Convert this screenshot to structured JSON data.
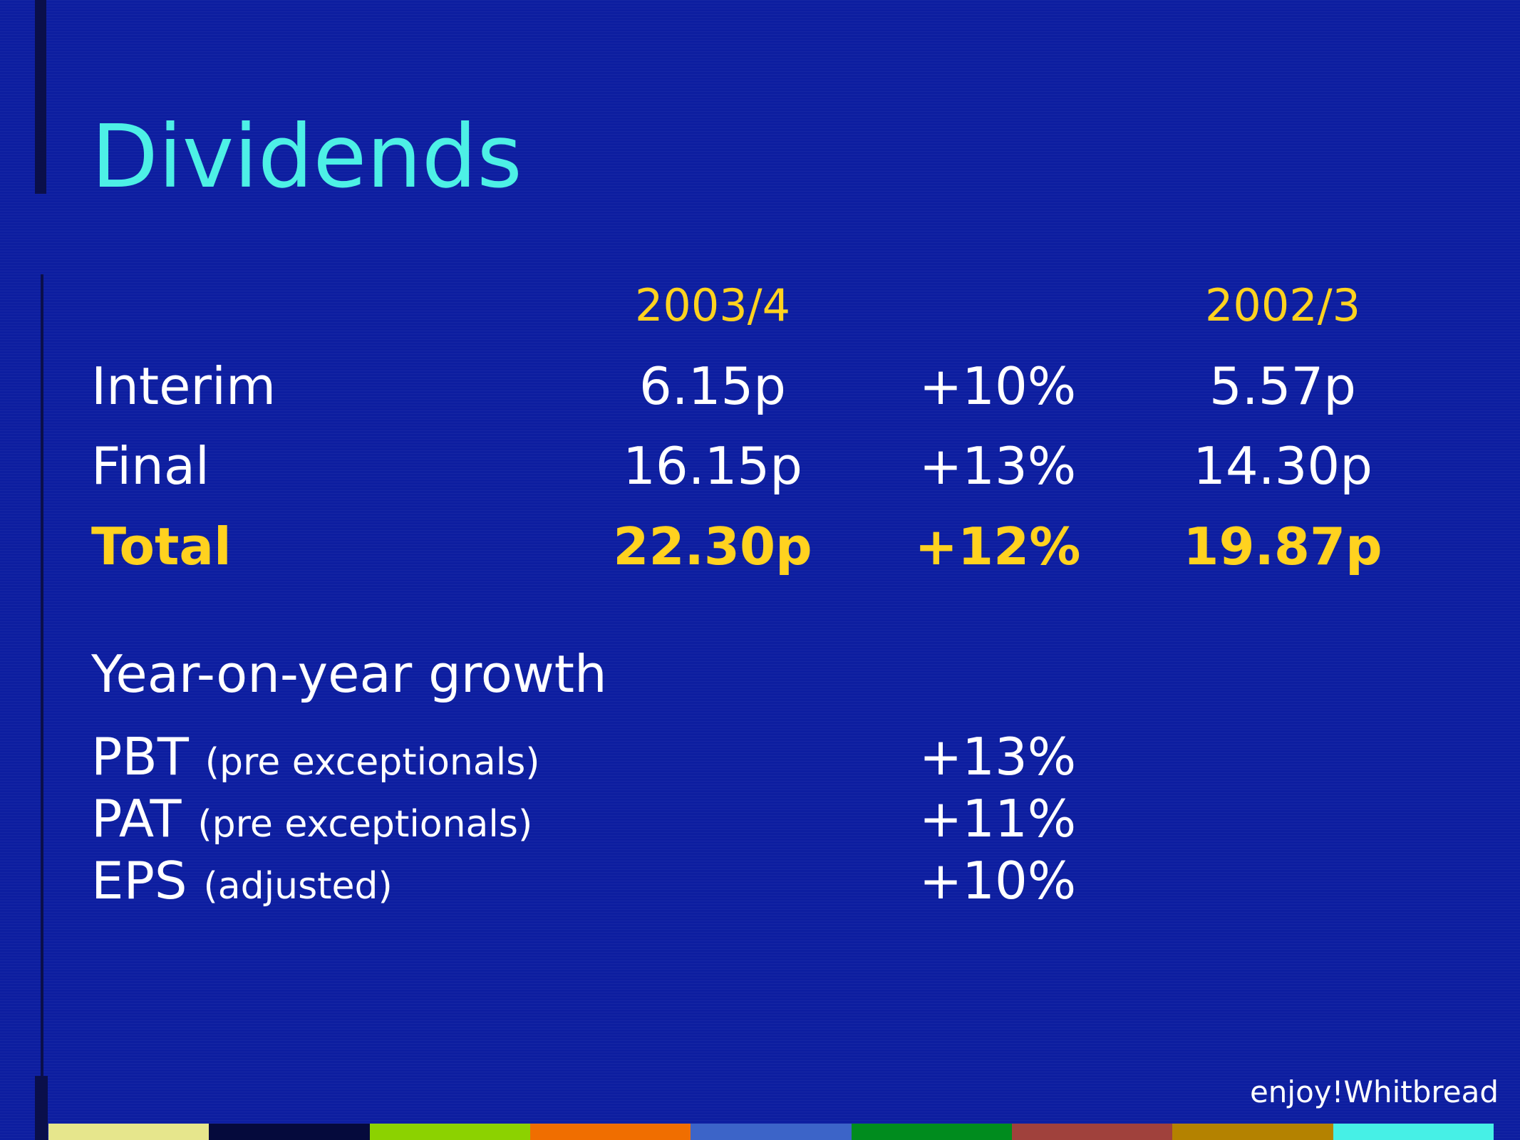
{
  "title": "Dividends",
  "table": {
    "headers": [
      "2003/4",
      "2002/3"
    ],
    "rows": [
      {
        "label": "Interim",
        "current": "6.15p",
        "change": "+10%",
        "prior": "5.57p"
      },
      {
        "label": "Final",
        "current": "16.15p",
        "change": "+13%",
        "prior": "14.30p"
      },
      {
        "label": "Total",
        "current": "22.30p",
        "change": "+12%",
        "prior": "19.87p"
      }
    ]
  },
  "growth": {
    "title": "Year-on-year growth",
    "items": [
      {
        "metric": "PBT",
        "note": "(pre exceptionals)",
        "value": "+13%"
      },
      {
        "metric": "PAT",
        "note": "(pre exceptionals)",
        "value": "+11%"
      },
      {
        "metric": "EPS",
        "note": "(adjusted)",
        "value": "+10%"
      }
    ]
  },
  "footer": "enjoy!Whitbread",
  "colors": {
    "background": "#0d1ea0",
    "title": "#4df0e6",
    "highlight": "#ffd21f",
    "strip": [
      "#e6e68c",
      "#050a3c",
      "#8cd200",
      "#f06e00",
      "#3c64c8",
      "#008c1e",
      "#a0413c",
      "#b48200",
      "#46f0e6"
    ]
  }
}
